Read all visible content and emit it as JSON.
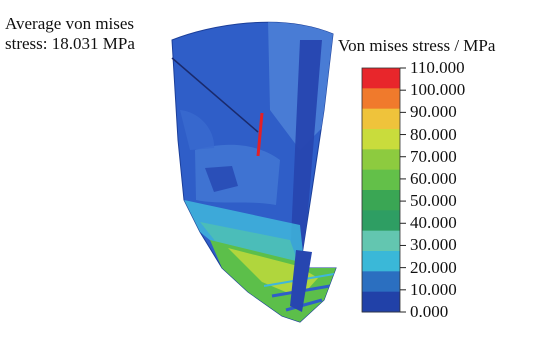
{
  "annotation": {
    "line1": "Average von mises",
    "line2": "stress: 18.031 MPa"
  },
  "legend": {
    "title": "Von mises stress / MPa",
    "labels": [
      "110.000",
      "100.000",
      "90.000",
      "80.000",
      "70.000",
      "60.000",
      "50.000",
      "40.000",
      "30.000",
      "20.000",
      "10.000",
      "0.000"
    ],
    "band_colors": [
      "#e8262b",
      "#f07a2c",
      "#efc33b",
      "#c9dc3c",
      "#8dcb3f",
      "#63c049",
      "#3aa654",
      "#2e9e63",
      "#63c6b0",
      "#3ab8d8",
      "#2b6fc0",
      "#2141a8"
    ]
  },
  "model": {
    "colors": {
      "base_blue": "#2f5ec8",
      "deep_blue": "#2746b0",
      "light_blue": "#4c7fd6",
      "cyan": "#3fb6dc",
      "teal": "#4fc2b0",
      "green": "#5cbf4a",
      "yellow_green": "#b9d83c",
      "red": "#e32027"
    }
  }
}
